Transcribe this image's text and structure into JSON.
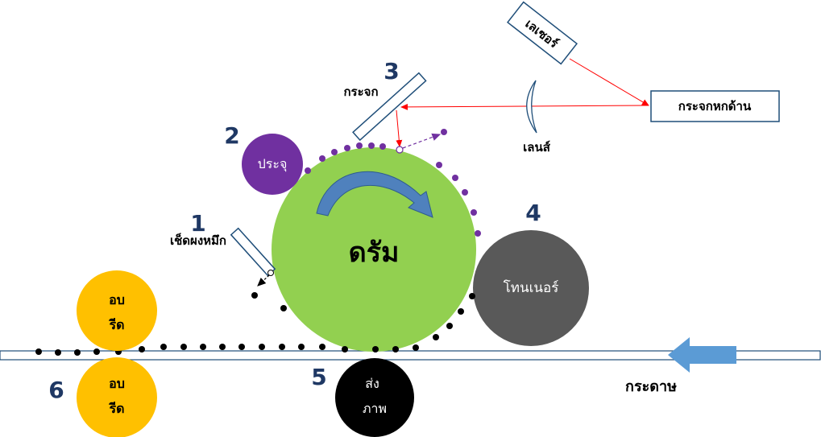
{
  "labels": {
    "laser": "เลเซอร์",
    "polygon_mirror": "กระจกหกด้าน",
    "mirror": "กระจก",
    "lens": "เลนส์",
    "charge": "ประจุ",
    "drum": "ดรัม",
    "toner": "โทนเนอร์",
    "wiper": "เช็ดผงหมึก",
    "fuser_top_line1": "อบ",
    "fuser_top_line2": "รีด",
    "fuser_bottom_line1": "อบ",
    "fuser_bottom_line2": "รีด",
    "transfer_line1": "ส่ง",
    "transfer_line2": "ภาพ",
    "paper": "กระดาษ"
  },
  "numbers": {
    "n1": "1",
    "n2": "2",
    "n3": "3",
    "n4": "4",
    "n5": "5",
    "n6": "6"
  },
  "colors": {
    "drum": "#92d050",
    "charge": "#7030a0",
    "toner": "#595959",
    "fuser": "#ffc000",
    "transfer": "#000000",
    "laser_beam": "#ff0000",
    "paper_arrow": "#5b9bd5",
    "component_outline": "#1f4e79",
    "number_text": "#1f3864"
  }
}
